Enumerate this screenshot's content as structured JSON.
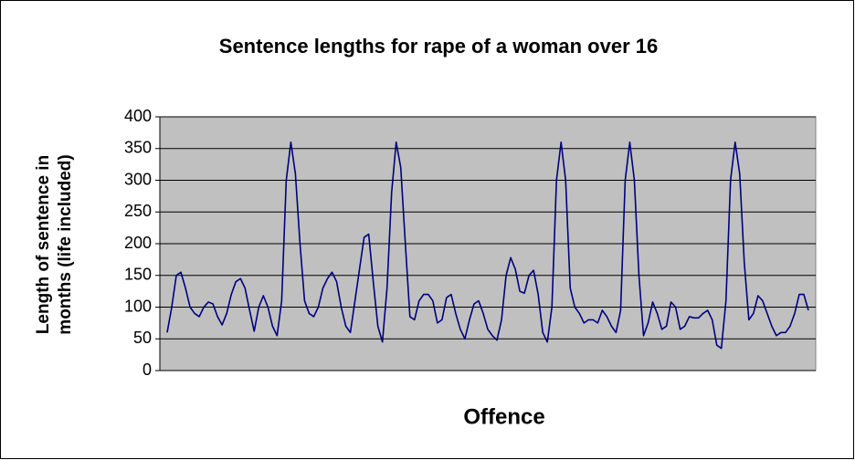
{
  "chart_data": {
    "type": "line",
    "title": "Sentence lengths for rape of a woman over 16",
    "x_label": "Offence",
    "y_label": [
      "Length of sentence in",
      "months (life included)"
    ],
    "color": "#000080",
    "ylim": [
      0,
      400
    ],
    "yticks": [
      0,
      50,
      100,
      150,
      200,
      250,
      300,
      350,
      400
    ],
    "grid": true,
    "values": [
      60,
      100,
      150,
      155,
      130,
      100,
      90,
      85,
      100,
      108,
      105,
      85,
      72,
      90,
      120,
      140,
      145,
      130,
      95,
      62,
      100,
      118,
      100,
      70,
      55,
      110,
      300,
      360,
      310,
      200,
      110,
      90,
      85,
      100,
      130,
      145,
      155,
      140,
      100,
      70,
      60,
      110,
      160,
      210,
      215,
      140,
      70,
      45,
      130,
      280,
      360,
      320,
      200,
      85,
      80,
      110,
      120,
      120,
      110,
      75,
      80,
      115,
      120,
      90,
      65,
      50,
      80,
      105,
      110,
      90,
      65,
      55,
      48,
      80,
      150,
      178,
      160,
      125,
      122,
      150,
      158,
      120,
      60,
      45,
      100,
      300,
      360,
      300,
      130,
      100,
      90,
      75,
      80,
      80,
      75,
      95,
      85,
      70,
      60,
      95,
      300,
      360,
      300,
      150,
      55,
      75,
      108,
      90,
      65,
      70,
      108,
      100,
      65,
      70,
      85,
      83,
      83,
      90,
      95,
      80,
      40,
      35,
      110,
      300,
      360,
      310,
      170,
      80,
      90,
      118,
      110,
      90,
      70,
      55,
      60,
      60,
      70,
      90,
      120,
      120,
      95
    ]
  }
}
